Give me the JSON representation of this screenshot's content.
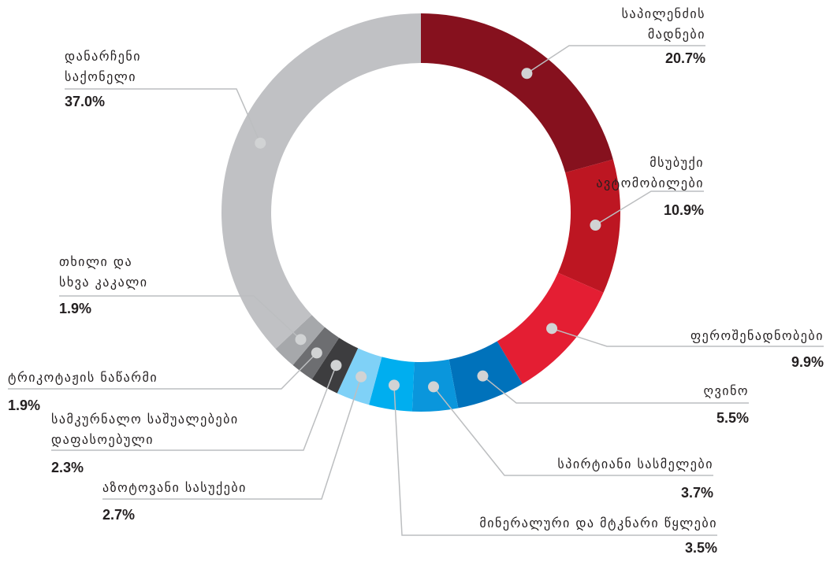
{
  "chart_data": {
    "type": "donut",
    "categories": [
      "საპილენძის\nმადნები",
      "მსუბუქი\nავტომობილები",
      "ფეროშენადნობები",
      "ღვინო",
      "სპირტიანი სასმელები",
      "მინერალური და მტკნარი წყლები",
      "აზოტოვანი სასუქები",
      "სამკურნალო საშუალებები\nდაფასოებული",
      "ტრიკოტაჟის ნაწარმი",
      "თხილი და\nსხვა კაკალი",
      "დანარჩენი\nსაქონელი"
    ],
    "values": [
      20.7,
      10.9,
      9.9,
      5.5,
      3.7,
      3.5,
      2.7,
      2.3,
      1.9,
      1.9,
      37
    ],
    "value_labels": [
      "20.7%",
      "10.9%",
      "9.9%",
      "5.5%",
      "3.7%",
      "3.5%",
      "2.7%",
      "2.3%",
      "1.9%",
      "1.9%",
      "37.0%"
    ],
    "colors": [
      "#86111e",
      "#bd1622",
      "#e41e33",
      "#0072bb",
      "#0a96dc",
      "#00aeef",
      "#7fd1f7",
      "#3d3d3f",
      "#6d6e71",
      "#a6a8ab",
      "#c0c1c4"
    ]
  }
}
